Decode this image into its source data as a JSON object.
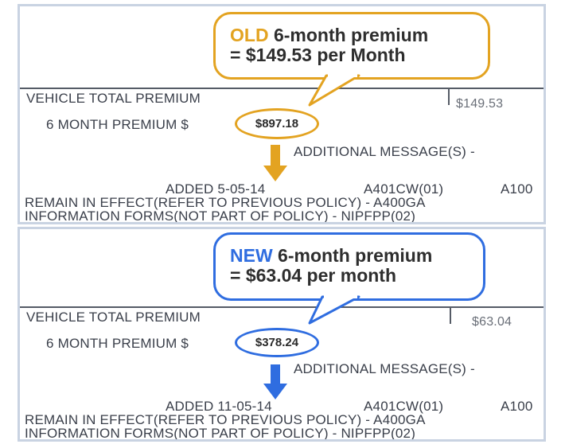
{
  "colors": {
    "old_accent": "#e3a321",
    "new_accent": "#2f6de0",
    "text": "#3a3f4a",
    "border": "#c9d3e2"
  },
  "old": {
    "callout_highlight": "OLD",
    "callout_line1_rest": " 6-month premium",
    "callout_line2": "= $149.53 per Month",
    "vehicle_total_label": "VEHICLE TOTAL PREMIUM",
    "vehicle_total_value": "$149.53",
    "six_month_label": "6 MONTH PREMIUM $",
    "six_month_value": "$897.18",
    "additional_message": "ADDITIONAL MESSAGE(S) -",
    "added_line": "ADDED  5-05-14",
    "form_code": "A401CW(01)",
    "form_code_2": "A100",
    "remain_line": "REMAIN IN EFFECT(REFER TO PREVIOUS POLICY) - A400GA",
    "info_line": "INFORMATION FORMS(NOT PART OF POLICY) - NIPFPP(02)",
    "arrow_icon": "arrow-down-icon"
  },
  "new": {
    "callout_highlight": "NEW",
    "callout_line1_rest": " 6-month premium",
    "callout_line2": "= $63.04 per month",
    "vehicle_total_label": "VEHICLE TOTAL PREMIUM",
    "vehicle_total_value": "$63.04",
    "six_month_label": "6 MONTH PREMIUM $",
    "six_month_value": "$378.24",
    "additional_message": "ADDITIONAL MESSAGE(S) -",
    "added_line": "ADDED  11-05-14",
    "form_code": "A401CW(01)",
    "form_code_2": "A100",
    "remain_line": "REMAIN IN EFFECT(REFER TO PREVIOUS POLICY) - A400GA",
    "info_line": "INFORMATION FORMS(NOT PART OF POLICY) - NIPFPP(02)",
    "arrow_icon": "arrow-down-icon"
  }
}
